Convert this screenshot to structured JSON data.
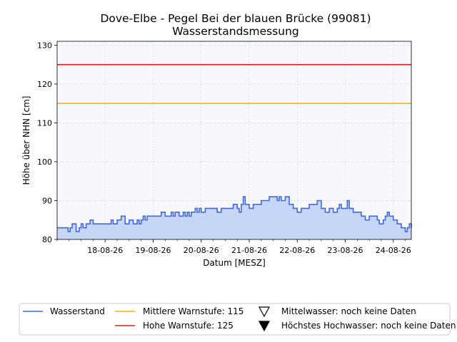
{
  "chart_data": {
    "type": "line",
    "title": "Dove-Elbe - Pegel Bei der blauen Brücke (99081)",
    "subtitle": "Wasserstandsmessung",
    "xlabel": "Datum [MESZ]",
    "ylabel": "Höhe über NHN [cm]",
    "ylim": [
      80,
      131
    ],
    "xlim": [
      "2026-08-17T00:00",
      "2026-08-24T09:00"
    ],
    "yticks": [
      80,
      90,
      100,
      110,
      120,
      130
    ],
    "xticks": [
      "18-08-26",
      "19-08-26",
      "20-08-26",
      "21-08-26",
      "22-08-26",
      "23-08-26",
      "24-08-26"
    ],
    "grid": true,
    "legend_position": "bottom",
    "colors": {
      "wasserstand": "#4169e1",
      "wasserstand_fill": "#c6d6f7",
      "mittlere": "#ffb300",
      "hohe": "#d62020",
      "plot_bg": "#f7f8fd"
    },
    "thresholds": [
      {
        "name": "Mittlere Warnstufe: 115",
        "value": 115
      },
      {
        "name": "Hohe Warnstufe: 125",
        "value": 125
      }
    ],
    "markers": [
      {
        "name": "Mittelwasser: noch keine Daten",
        "symbol": "triangle-down-open"
      },
      {
        "name": "Höchstes Hochwasser: noch keine Daten",
        "symbol": "triangle-down-filled"
      }
    ],
    "series": [
      {
        "name": "Wasserstand",
        "x": [
          "2026-08-17T00:00",
          "2026-08-17T05:00",
          "2026-08-17T05:30",
          "2026-08-17T06:30",
          "2026-08-17T07:30",
          "2026-08-17T08:30",
          "2026-08-17T09:30",
          "2026-08-17T11:00",
          "2026-08-17T12:00",
          "2026-08-17T13:00",
          "2026-08-17T14:30",
          "2026-08-17T15:30",
          "2026-08-17T16:30",
          "2026-08-17T18:00",
          "2026-08-17T19:30",
          "2026-08-17T21:00",
          "2026-08-17T23:00",
          "2026-08-18T01:00",
          "2026-08-18T02:00",
          "2026-08-18T03:00",
          "2026-08-18T04:00",
          "2026-08-18T06:00",
          "2026-08-18T08:00",
          "2026-08-18T10:00",
          "2026-08-18T12:00",
          "2026-08-18T14:00",
          "2026-08-18T15:00",
          "2026-08-18T16:00",
          "2026-08-18T17:00",
          "2026-08-18T18:00",
          "2026-08-18T19:00",
          "2026-08-18T20:00",
          "2026-08-18T21:00",
          "2026-08-18T22:00",
          "2026-08-19T00:00",
          "2026-08-19T02:00",
          "2026-08-19T03:00",
          "2026-08-19T04:00",
          "2026-08-19T06:00",
          "2026-08-19T07:00",
          "2026-08-19T08:00",
          "2026-08-19T09:00",
          "2026-08-19T10:00",
          "2026-08-19T11:00",
          "2026-08-19T13:00",
          "2026-08-19T15:00",
          "2026-08-19T16:00",
          "2026-08-19T17:00",
          "2026-08-19T18:00",
          "2026-08-19T19:00",
          "2026-08-19T20:00",
          "2026-08-19T21:00",
          "2026-08-19T22:00",
          "2026-08-19T23:00",
          "2026-08-20T00:00",
          "2026-08-20T02:00",
          "2026-08-20T03:00",
          "2026-08-20T04:00",
          "2026-08-20T06:00",
          "2026-08-20T08:00",
          "2026-08-20T10:00",
          "2026-08-20T11:00",
          "2026-08-20T13:00",
          "2026-08-20T15:00",
          "2026-08-20T16:00",
          "2026-08-20T18:00",
          "2026-08-20T19:00",
          "2026-08-20T20:00",
          "2026-08-20T21:00",
          "2026-08-20T22:00",
          "2026-08-21T00:00",
          "2026-08-21T02:00",
          "2026-08-21T04:00",
          "2026-08-21T06:00",
          "2026-08-21T07:00",
          "2026-08-21T08:00",
          "2026-08-21T10:00",
          "2026-08-21T12:00",
          "2026-08-21T14:00",
          "2026-08-21T15:00",
          "2026-08-21T16:00",
          "2026-08-21T18:00",
          "2026-08-21T20:00",
          "2026-08-21T22:00",
          "2026-08-22T00:00",
          "2026-08-22T02:00",
          "2026-08-22T04:00",
          "2026-08-22T06:00",
          "2026-08-22T08:00",
          "2026-08-22T10:00",
          "2026-08-22T12:00",
          "2026-08-22T14:00",
          "2026-08-22T16:00",
          "2026-08-22T18:00",
          "2026-08-22T20:00",
          "2026-08-22T21:00",
          "2026-08-22T22:00",
          "2026-08-23T00:00",
          "2026-08-23T01:00",
          "2026-08-23T02:00",
          "2026-08-23T04:00",
          "2026-08-23T06:00",
          "2026-08-23T08:00",
          "2026-08-23T10:00",
          "2026-08-23T12:00",
          "2026-08-23T14:00",
          "2026-08-23T16:00",
          "2026-08-23T17:00",
          "2026-08-23T18:00",
          "2026-08-23T19:00",
          "2026-08-23T20:00",
          "2026-08-23T21:00",
          "2026-08-23T22:00",
          "2026-08-24T00:00",
          "2026-08-24T02:00",
          "2026-08-24T04:00",
          "2026-08-24T06:00",
          "2026-08-24T07:00",
          "2026-08-24T08:00",
          "2026-08-24T09:00"
        ],
        "y": [
          83,
          83,
          82,
          83,
          84,
          84,
          82,
          83,
          84,
          83,
          84,
          84,
          85,
          84,
          84,
          84,
          84,
          84,
          84,
          85,
          84,
          85,
          86,
          84,
          85,
          84,
          84,
          85,
          84,
          85,
          86,
          85,
          86,
          86,
          86,
          86,
          86,
          87,
          86,
          86,
          86,
          87,
          86,
          87,
          86,
          87,
          86,
          87,
          86,
          87,
          87,
          88,
          87,
          88,
          87,
          88,
          88,
          88,
          88,
          87,
          88,
          88,
          88,
          88,
          89,
          88,
          87,
          89,
          91,
          89,
          88,
          89,
          89,
          90,
          90,
          90,
          91,
          91,
          90,
          91,
          90,
          91,
          89,
          88,
          87,
          88,
          88,
          89,
          89,
          90,
          88,
          87,
          88,
          87,
          88,
          89,
          88,
          88,
          90,
          88,
          87,
          87,
          86,
          85,
          86,
          86,
          85,
          84,
          84,
          85,
          86,
          87,
          86,
          85,
          84,
          83,
          82,
          83,
          84,
          83
        ]
      }
    ]
  }
}
